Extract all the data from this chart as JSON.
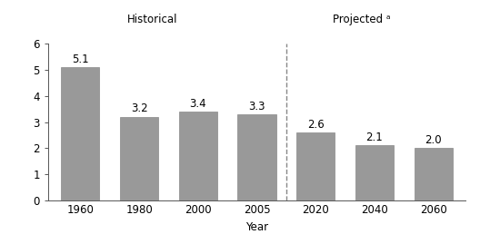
{
  "categories": [
    "1960",
    "1980",
    "2000",
    "2005",
    "2020",
    "2040",
    "2060"
  ],
  "values": [
    5.1,
    3.2,
    3.4,
    3.3,
    2.6,
    2.1,
    2.0
  ],
  "bar_color": "#999999",
  "bar_edge_color": "#888888",
  "xlabel": "Year",
  "ylim": [
    0,
    6
  ],
  "yticks": [
    0,
    1,
    2,
    3,
    4,
    5,
    6
  ],
  "historical_label": "Historical",
  "projected_label": "Projected ᵃ",
  "background_color": "#ffffff",
  "label_fontsize": 8.5,
  "axis_fontsize": 8.5,
  "annotation_fontsize": 8.5
}
